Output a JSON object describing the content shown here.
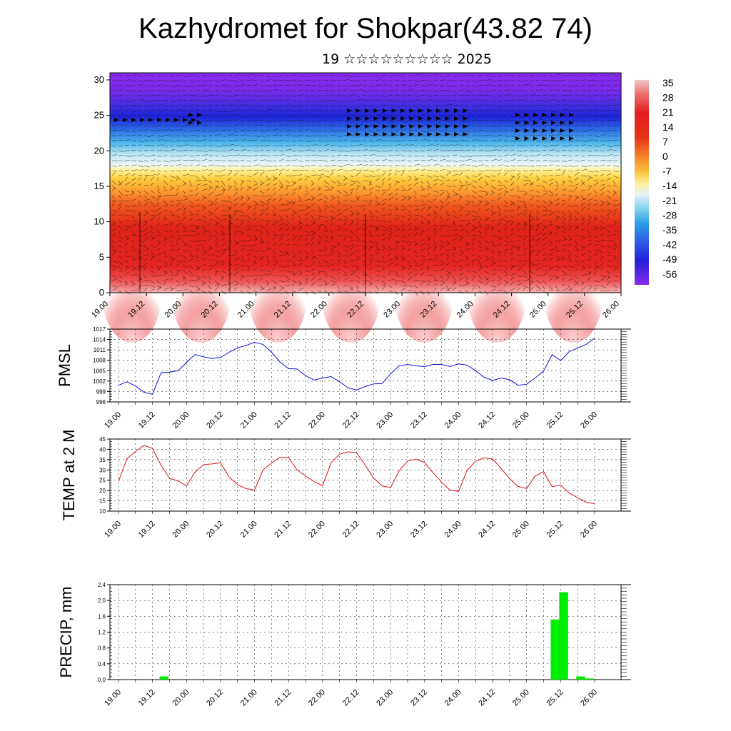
{
  "header": {
    "title": "Kazhydromet for Shokpar(43.82 74)",
    "subtitle": "19 ☆☆☆☆☆☆☆☆☆ 2025"
  },
  "time_labels": [
    "19.00",
    "19.12",
    "20.00",
    "20.12",
    "21.00",
    "21.12",
    "22.00",
    "22.12",
    "23.00",
    "23.12",
    "24.00",
    "24.12",
    "25.00",
    "25.12",
    "26.00"
  ],
  "colors": {
    "pmsl_line": "#1010dd",
    "temp_line": "#dd1010",
    "precip_bar": "#00ee00",
    "axis": "#000000"
  },
  "chart_data": [
    {
      "type": "heatmap",
      "y_ticks": [
        0,
        5,
        10,
        15,
        20,
        25,
        30
      ],
      "ylim": [
        0,
        31
      ],
      "colorbar": {
        "labels": [
          "35",
          "28",
          "21",
          "14",
          "7",
          "0",
          "-7",
          "-14",
          "-21",
          "-28",
          "-35",
          "-42",
          "-49",
          "-56"
        ],
        "colors": [
          "#f7c6c6",
          "#f08080",
          "#e83030",
          "#e31a1c",
          "#f03b20",
          "#fd8d3c",
          "#feb24c",
          "#fff09a",
          "#d6f0f7",
          "#7fd4ee",
          "#37a6e8",
          "#3d6fe8",
          "#3a3ae6",
          "#7b1fe8"
        ]
      },
      "wind_barbs": "wind arrows overlay"
    },
    {
      "type": "line",
      "ylabel": "PMSL",
      "y_ticks": [
        996,
        999,
        1002,
        1005,
        1008,
        1011,
        1014,
        1017
      ],
      "ylim": [
        996,
        1017
      ],
      "series": [
        {
          "values": [
            1000.8,
            1001.8,
            1000.6,
            998.8,
            998.2,
            1004.4,
            1004.6,
            1005.0,
            1007.4,
            1009.7,
            1009.0,
            1008.5,
            1008.8,
            1010.3,
            1011.6,
            1012.3,
            1013.2,
            1012.6,
            1010.3,
            1007.5,
            1005.6,
            1005.5,
            1003.6,
            1002.3,
            1002.9,
            1003.3,
            1001.8,
            1000.1,
            999.4,
            1000.4,
            1001.2,
            1001.3,
            1004.1,
            1006.4,
            1006.8,
            1006.4,
            1006.2,
            1006.8,
            1006.8,
            1006.2,
            1007.0,
            1006.6,
            1005.0,
            1003.1,
            1002.2,
            1002.9,
            1002.4,
            1000.8,
            1001.1,
            1002.9,
            1004.9,
            1009.6,
            1007.9,
            1010.5,
            1011.5,
            1012.6,
            1014.4
          ]
        }
      ]
    },
    {
      "type": "line",
      "ylabel": "TEMP at 2 M",
      "y_ticks": [
        10,
        15,
        20,
        25,
        30,
        35,
        40,
        45
      ],
      "ylim": [
        10,
        45
      ],
      "series": [
        {
          "values": [
            24.5,
            35.5,
            38.9,
            42.0,
            40.4,
            32.3,
            25.9,
            24.7,
            22.3,
            29.0,
            32.6,
            32.9,
            33.5,
            26.6,
            22.9,
            20.9,
            20.2,
            30.0,
            33.4,
            36.1,
            36.0,
            30.0,
            27.0,
            24.3,
            22.4,
            33.6,
            37.6,
            38.8,
            38.3,
            32.4,
            26.1,
            22.2,
            21.4,
            29.6,
            34.3,
            35.2,
            33.6,
            28.6,
            24.1,
            20.1,
            19.6,
            29.8,
            34.2,
            35.9,
            35.3,
            30.7,
            25.7,
            22.0,
            21.0,
            27.0,
            29.2,
            21.9,
            22.7,
            18.8,
            16.5,
            14.3,
            13.6
          ]
        }
      ]
    },
    {
      "type": "bar",
      "ylabel": "PRECIP, mm",
      "y_ticks": [
        "0.0",
        "0.4",
        "0.8",
        "1.2",
        "1.6",
        "2.0",
        "2.4"
      ],
      "ylim": [
        0,
        2.4
      ],
      "series": [
        {
          "values": [
            0,
            0,
            0,
            0,
            0,
            0.08,
            0,
            0,
            0,
            0,
            0,
            0,
            0,
            0,
            0,
            0,
            0,
            0,
            0,
            0,
            0,
            0,
            0,
            0,
            0,
            0,
            0,
            0,
            0,
            0,
            0,
            0,
            0,
            0,
            0,
            0,
            0,
            0,
            0,
            0,
            0,
            0,
            0,
            0,
            0,
            0,
            0,
            0,
            0,
            0,
            0,
            1.52,
            2.21,
            0,
            0.08,
            0.03,
            0
          ]
        }
      ]
    }
  ]
}
